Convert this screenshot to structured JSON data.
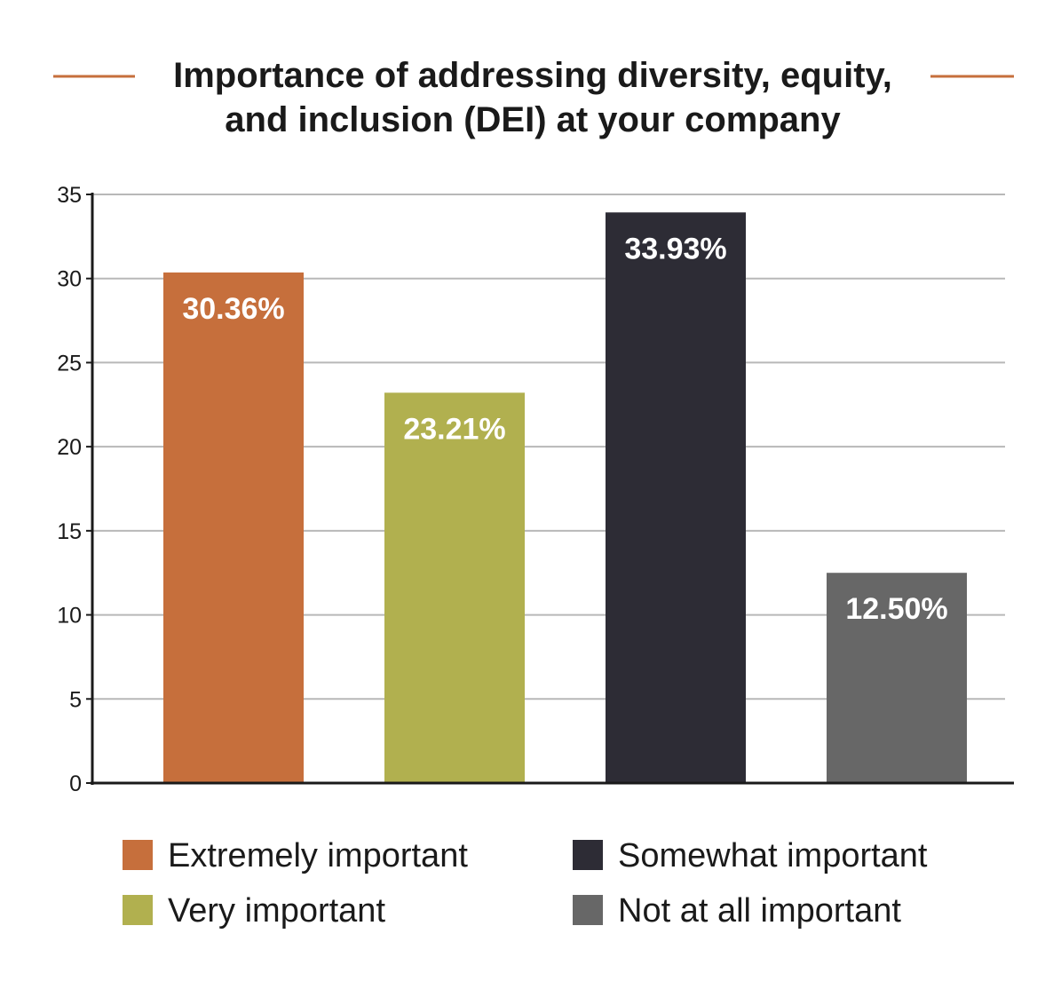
{
  "chart_data": {
    "type": "bar",
    "title": "Importance of addressing diversity, equity, and inclusion (DEI) at your company",
    "title_lines": [
      "Importance of addressing diversity, equity,",
      "and inclusion (DEI) at your company"
    ],
    "categories": [
      "Extremely important",
      "Very important",
      "Somewhat important",
      "Not at all important"
    ],
    "values": [
      30.36,
      23.21,
      33.93,
      12.5
    ],
    "value_labels": [
      "30.36%",
      "23.21%",
      "33.93%",
      "12.50%"
    ],
    "colors": [
      "#c66f3c",
      "#b1b04f",
      "#2d2c35",
      "#676767"
    ],
    "ylim": [
      0,
      35
    ],
    "yticks": [
      0,
      5,
      10,
      15,
      20,
      25,
      30,
      35
    ],
    "grid": true,
    "legend_position": "bottom",
    "legend": [
      "Extremely important",
      "Somewhat important",
      "Very important",
      "Not at all important"
    ],
    "accent_color": "#c66f3c"
  }
}
